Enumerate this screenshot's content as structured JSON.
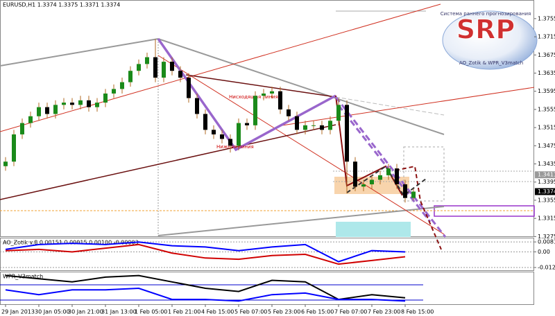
{
  "chart_data": [
    {
      "type": "candlestick",
      "title": "EURUSD,H1 1.3374 1.3375 1.3371 1.3374",
      "categories": [
        "29 Jan 2013",
        null,
        null,
        null,
        "30 Jan 05:00",
        null,
        null,
        null,
        "30 Jan 21:00",
        null,
        null,
        null,
        "31 Jan 13:00",
        null,
        null,
        null,
        "1 Feb 05:00",
        null,
        null,
        null,
        "1 Feb 21:00",
        null,
        null,
        null,
        "4 Feb 15:00",
        null,
        null,
        null,
        "5 Feb 07:00",
        null,
        null,
        null,
        "5 Feb 23:00",
        null,
        null,
        null,
        "6 Feb 15:00",
        null,
        null,
        null,
        "7 Feb 07:00",
        null,
        null,
        null,
        "7 Feb 23:00",
        null,
        null,
        null,
        "8 Feb 15:00",
        null
      ],
      "open": [
        1.343,
        1.344,
        1.35,
        1.3525,
        1.354,
        1.356,
        1.3545,
        1.3565,
        1.357,
        1.3565,
        1.3575,
        1.356,
        1.357,
        1.359,
        1.36,
        1.3615,
        1.364,
        1.3655,
        1.367,
        1.3625,
        1.366,
        1.364,
        1.3625,
        1.358,
        1.3545,
        1.351,
        1.35,
        1.349,
        1.3475,
        1.3525,
        1.352,
        1.3585,
        1.359,
        1.3595,
        1.3555,
        1.354,
        1.351,
        1.352,
        1.352,
        1.351,
        1.353,
        1.3565,
        1.344,
        1.3385,
        1.339,
        1.34,
        1.341,
        1.3425,
        1.339,
        1.336
      ],
      "high": [
        1.345,
        1.351,
        1.3535,
        1.355,
        1.357,
        1.357,
        1.3575,
        1.358,
        1.358,
        1.3585,
        1.3585,
        1.358,
        1.36,
        1.361,
        1.3625,
        1.365,
        1.3665,
        1.368,
        1.371,
        1.367,
        1.367,
        1.365,
        1.3635,
        1.359,
        1.3555,
        1.352,
        1.351,
        1.35,
        1.3535,
        1.3535,
        1.3595,
        1.36,
        1.3605,
        1.3605,
        1.3565,
        1.355,
        1.353,
        1.353,
        1.353,
        1.354,
        1.358,
        1.3575,
        1.345,
        1.34,
        1.341,
        1.342,
        1.3435,
        1.3435,
        1.34,
        1.338
      ],
      "low": [
        1.342,
        1.343,
        1.349,
        1.3515,
        1.353,
        1.3535,
        1.3535,
        1.3555,
        1.3555,
        1.3555,
        1.355,
        1.355,
        1.356,
        1.358,
        1.359,
        1.3605,
        1.363,
        1.3645,
        1.3615,
        1.3615,
        1.363,
        1.3615,
        1.357,
        1.3535,
        1.35,
        1.349,
        1.348,
        1.346,
        1.3465,
        1.351,
        1.351,
        1.3575,
        1.358,
        1.3545,
        1.353,
        1.35,
        1.35,
        1.351,
        1.35,
        1.35,
        1.352,
        1.337,
        1.3375,
        1.3375,
        1.338,
        1.339,
        1.34,
        1.338,
        1.335,
        1.3355
      ],
      "close": [
        1.344,
        1.35,
        1.3525,
        1.354,
        1.356,
        1.3545,
        1.3565,
        1.357,
        1.3565,
        1.3575,
        1.356,
        1.357,
        1.359,
        1.36,
        1.3615,
        1.364,
        1.3655,
        1.367,
        1.3625,
        1.366,
        1.364,
        1.3625,
        1.358,
        1.3545,
        1.351,
        1.35,
        1.349,
        1.3475,
        1.3525,
        1.352,
        1.3585,
        1.359,
        1.3595,
        1.3555,
        1.354,
        1.351,
        1.352,
        1.352,
        1.351,
        1.353,
        1.3565,
        1.344,
        1.3385,
        1.339,
        1.34,
        1.341,
        1.3425,
        1.339,
        1.336,
        1.3374
      ],
      "up_color": "#1a8a1a",
      "down_color": "#000000",
      "wick_color": "#b06a20",
      "ylim": [
        1.3274,
        1.3796
      ],
      "yticks": [
        1.3755,
        1.3715,
        1.3675,
        1.3635,
        1.3595,
        1.3555,
        1.3515,
        1.3475,
        1.3435,
        1.3395,
        1.3355,
        1.3315,
        1.3275
      ],
      "price_markers": [
        1.3411,
        1.3374
      ],
      "annotations": [
        "Нисходящая линия",
        "Нижняя линия"
      ],
      "logo": {
        "title": "SRP",
        "subtitle": "Система раннего прогнозирования",
        "footer": "AO_Zotik & WPR_V3match"
      }
    },
    {
      "type": "line",
      "title": "AO_Zotik v.8 0.00151 0.00015 0.00100 -0.00003",
      "ylim": [
        -0.015,
        0.011
      ],
      "yticks": [
        0.00811,
        {
          "value": 0,
          "label": "0.00"
        },
        -0.01274
      ],
      "series": [
        {
          "color": "#0000ff",
          "values": [
            0.002,
            0.006,
            0.007,
            0.006,
            0.008,
            0.005,
            0.004,
            0.001,
            0.004,
            0.006,
            -0.008,
            0.001,
            0.0
          ]
        },
        {
          "color": "#d00000",
          "values": [
            0.001,
            0.002,
            0.0,
            0.003,
            0.006,
            -0.001,
            -0.005,
            -0.006,
            -0.003,
            -0.002,
            -0.01,
            -0.007,
            -0.004
          ]
        }
      ]
    },
    {
      "type": "line",
      "title": "WPR_V3match",
      "ylim": [
        -100,
        0
      ],
      "series": [
        {
          "color": "#000000",
          "values": [
            -10,
            -20,
            -30,
            -15,
            -10,
            -30,
            -50,
            -60,
            -25,
            -30,
            -85,
            -70,
            -80
          ]
        },
        {
          "color": "#0000ff",
          "values": [
            -55,
            -70,
            -55,
            -55,
            -50,
            -85,
            -85,
            -90,
            -70,
            -65,
            -85,
            -85,
            -90
          ]
        }
      ]
    }
  ]
}
